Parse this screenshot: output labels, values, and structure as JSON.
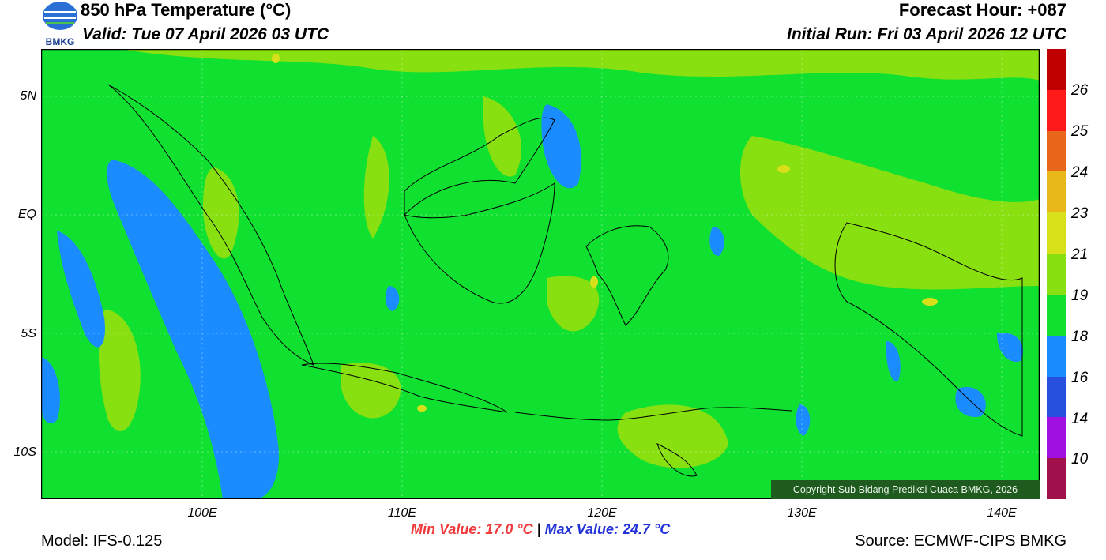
{
  "header": {
    "title": "850 hPa Temperature (°C)",
    "valid": "Valid: Tue 07 April 2026 03 UTC",
    "forecast_hour": "Forecast Hour: +087",
    "initial_run": "Initial Run: Fri 03 April 2026 12 UTC",
    "logo_text": "BMKG"
  },
  "axes": {
    "lat_labels": [
      "5N",
      "EQ",
      "5S",
      "10S"
    ],
    "lon_labels": [
      "100E",
      "110E",
      "120E",
      "130E",
      "140E"
    ]
  },
  "colorbar": {
    "labels": [
      "26",
      "25",
      "24",
      "23",
      "21",
      "19",
      "18",
      "16",
      "14",
      "10"
    ],
    "colors": [
      "#c00000",
      "#ff1a1a",
      "#e8661a",
      "#e8b81a",
      "#d8e01a",
      "#88e010",
      "#10e030",
      "#1a8cff",
      "#2850e0",
      "#a010e0",
      "#a0104a"
    ]
  },
  "palette": {
    "t18": "#1a8cff",
    "t19": "#10e030",
    "t21": "#88e010",
    "t23": "#d8e01a"
  },
  "copyright": "Copyright Sub Bidang Prediksi Cuaca BMKG, 2026",
  "stats": {
    "min": "Min Value: 17.0 °C",
    "separator": "|",
    "max": "Max Value: 24.7 °C"
  },
  "footer": {
    "model": "Model: IFS-0.125",
    "source": "Source: ECMWF-CIPS BMKG"
  }
}
